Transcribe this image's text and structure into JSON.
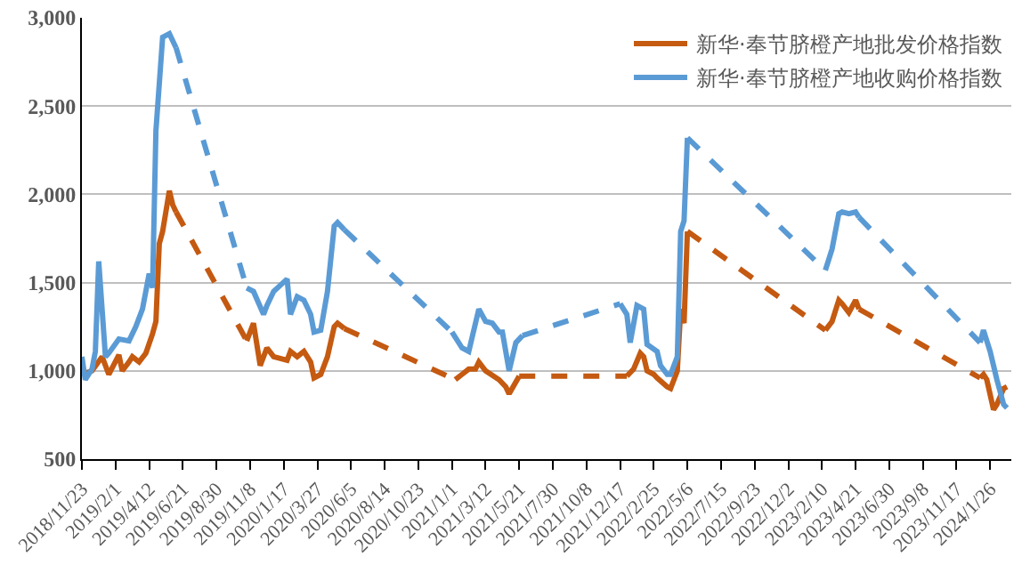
{
  "chart_data": {
    "type": "line",
    "legend": "top right",
    "grid": "y",
    "line_style": "solid",
    "marker": "none",
    "xlim": [
      "2018-11-23",
      "2024-03-10"
    ],
    "xticks": [
      {
        "value": "2018-11-23",
        "label": "2018/11/23"
      },
      {
        "value": "2019-02-01",
        "label": "2019/2/1"
      },
      {
        "value": "2019-04-12",
        "label": "2019/4/12"
      },
      {
        "value": "2019-06-21",
        "label": "2019/6/21"
      },
      {
        "value": "2019-08-30",
        "label": "2019/8/30"
      },
      {
        "value": "2019-11-08",
        "label": "2019/11/8"
      },
      {
        "value": "2020-01-17",
        "label": "2020/1/17"
      },
      {
        "value": "2020-03-27",
        "label": "2020/3/27"
      },
      {
        "value": "2020-06-05",
        "label": "2020/6/5"
      },
      {
        "value": "2020-08-14",
        "label": "2020/8/14"
      },
      {
        "value": "2020-10-23",
        "label": "2020/10/23"
      },
      {
        "value": "2021-01-01",
        "label": "2021/1/1"
      },
      {
        "value": "2021-03-12",
        "label": "2021/3/12"
      },
      {
        "value": "2021-05-21",
        "label": "2021/5/21"
      },
      {
        "value": "2021-07-30",
        "label": "2021/7/30"
      },
      {
        "value": "2021-10-08",
        "label": "2021/10/8"
      },
      {
        "value": "2021-12-17",
        "label": "2021/12/17"
      },
      {
        "value": "2022-02-25",
        "label": "2022/2/25"
      },
      {
        "value": "2022-05-06",
        "label": "2022/5/6"
      },
      {
        "value": "2022-07-15",
        "label": "2022/7/15"
      },
      {
        "value": "2022-09-23",
        "label": "2022/9/23"
      },
      {
        "value": "2022-12-02",
        "label": "2022/12/2"
      },
      {
        "value": "2023-02-10",
        "label": "2023/2/10"
      },
      {
        "value": "2023-04-21",
        "label": "2023/4/21"
      },
      {
        "value": "2023-06-30",
        "label": "2023/6/30"
      },
      {
        "value": "2023-09-08",
        "label": "2023/9/8"
      },
      {
        "value": "2023-11-17",
        "label": "2023/11/17"
      },
      {
        "value": "2024-01-26",
        "label": "2024/1/26"
      }
    ],
    "ylim": [
      500,
      3000
    ],
    "yticks": [
      500,
      {
        "value": 1000,
        "label": "1,000"
      },
      {
        "value": 1500,
        "label": "1,500"
      },
      {
        "value": 2000,
        "label": "2,000"
      },
      {
        "value": 2500,
        "label": "2,500"
      },
      {
        "value": 3000,
        "label": "3,000"
      }
    ],
    "series": [
      {
        "name": "新华·奉节脐橙产地批发价格指数",
        "color": "#c55a11",
        "x": [
          "2018-11-23",
          "2018-12-14",
          "2019-01-04",
          "2019-01-18",
          "2019-02-08",
          "2019-02-15",
          "2019-03-01",
          "2019-03-08",
          "2019-03-22",
          "2019-04-05",
          "2019-04-19",
          "2019-04-26",
          "2019-05-03",
          "2019-05-10",
          "2019-05-24",
          "2019-05-31",
          "2019-06-07",
          "2019-06-14",
          "2019-11-01",
          "2019-11-15",
          "2019-11-29",
          "2019-12-13",
          "2019-12-27",
          "2020-01-24",
          "2020-01-31",
          "2020-02-14",
          "2020-02-28",
          "2020-03-13",
          "2020-03-20",
          "2020-04-03",
          "2020-04-17",
          "2020-05-01",
          "2020-05-08",
          "2020-05-22",
          "2020-05-29",
          "2021-01-08",
          "2021-01-22",
          "2021-02-05",
          "2021-02-19",
          "2021-02-26",
          "2021-03-12",
          "2021-04-09",
          "2021-04-23",
          "2021-04-30",
          "2021-05-21",
          "2021-05-28",
          "2021-12-31",
          "2022-01-14",
          "2022-01-28",
          "2022-02-04",
          "2022-02-11",
          "2022-02-25",
          "2022-03-04",
          "2022-03-25",
          "2022-04-01",
          "2022-04-15",
          "2022-04-22",
          "2022-04-29",
          "2022-05-06",
          "2022-05-13",
          "2023-02-17",
          "2023-03-03",
          "2023-03-17",
          "2023-03-24",
          "2023-04-07",
          "2023-04-21",
          "2023-04-28",
          "2023-05-05",
          "2024-01-05",
          "2024-01-12",
          "2024-01-19",
          "2024-02-02",
          "2024-02-09",
          "2024-02-23",
          "2024-03-01"
        ],
        "values": [
          980,
          1000,
          1080,
          980,
          1090,
          1000,
          1050,
          1080,
          1050,
          1100,
          1210,
          1280,
          1720,
          1790,
          2020,
          1940,
          1900,
          null,
          1170,
          1270,
          1030,
          1130,
          1080,
          1060,
          1110,
          1080,
          1110,
          1050,
          960,
          980,
          1080,
          1250,
          1270,
          1240,
          null,
          950,
          980,
          1010,
          1010,
          1050,
          1000,
          950,
          910,
          870,
          970,
          null,
          970,
          1010,
          1100,
          1080,
          1000,
          980,
          960,
          910,
          900,
          1000,
          1350,
          1270,
          1790,
          null,
          1230,
          1280,
          1400,
          1380,
          1330,
          1400,
          1350,
          null,
          960,
          980,
          950,
          780,
          810,
          900,
          910
        ]
      },
      {
        "name": "新华·奉节脐橙产地收购价格指数",
        "color": "#5b9bd5",
        "x": [
          "2018-11-23",
          "2018-11-30",
          "2018-12-14",
          "2018-12-21",
          "2018-12-28",
          "2019-01-11",
          "2019-01-18",
          "2019-02-08",
          "2019-03-01",
          "2019-03-15",
          "2019-03-29",
          "2019-04-12",
          "2019-04-19",
          "2019-04-26",
          "2019-05-10",
          "2019-05-24",
          "2019-06-07",
          "2019-06-14",
          "2019-11-01",
          "2019-11-15",
          "2019-12-06",
          "2019-12-13",
          "2019-12-27",
          "2020-01-24",
          "2020-01-31",
          "2020-02-14",
          "2020-02-28",
          "2020-03-13",
          "2020-03-20",
          "2020-04-03",
          "2020-04-17",
          "2020-05-01",
          "2020-05-08",
          "2020-05-22",
          "2020-05-29",
          "2021-01-01",
          "2021-01-22",
          "2021-02-05",
          "2021-02-26",
          "2021-03-12",
          "2021-03-26",
          "2021-04-09",
          "2021-04-16",
          "2021-04-30",
          "2021-05-14",
          "2021-05-28",
          "2021-06-04",
          "2021-12-17",
          "2021-12-31",
          "2022-01-07",
          "2022-01-21",
          "2022-02-04",
          "2022-02-11",
          "2022-03-04",
          "2022-03-11",
          "2022-03-25",
          "2022-04-01",
          "2022-04-15",
          "2022-04-22",
          "2022-04-29",
          "2022-05-06",
          "2022-05-13",
          "2023-02-17",
          "2023-03-03",
          "2023-03-17",
          "2023-03-24",
          "2023-04-07",
          "2023-04-21",
          "2023-04-28",
          "2023-05-05",
          "2024-01-05",
          "2024-01-12",
          "2024-01-26",
          "2024-02-09",
          "2024-02-23",
          "2024-03-01"
        ],
        "values": [
          1080,
          950,
          1010,
          1110,
          1620,
          1080,
          1100,
          1180,
          1170,
          1250,
          1350,
          1550,
          1470,
          2360,
          2890,
          2910,
          2830,
          null,
          1470,
          1450,
          1320,
          1370,
          1450,
          1520,
          1320,
          1420,
          1400,
          1320,
          1220,
          1230,
          1450,
          1820,
          1840,
          1800,
          null,
          1220,
          1130,
          1110,
          1350,
          1280,
          1270,
          1220,
          1220,
          1000,
          1160,
          1200,
          null,
          1380,
          1320,
          1160,
          1370,
          1350,
          1150,
          1110,
          1030,
          980,
          980,
          1080,
          1790,
          1850,
          2320,
          null,
          1570,
          1690,
          1890,
          1900,
          1890,
          1900,
          1870,
          null,
          1160,
          1230,
          1110,
          950,
          810,
          790
        ]
      },
      {
        "color": "#c45911",
        "line_style": "dashed",
        "x": [
          "2019-06-07",
          "2019-11-01",
          "2019-11-08",
          "2020-05-22",
          "2021-01-08",
          "2021-01-15",
          "2021-05-21",
          "2021-12-31",
          "2022-01-07",
          "2022-05-06",
          "2023-02-17",
          "2023-02-24",
          "2023-04-28",
          "2024-01-05"
        ],
        "values": [
          1900,
          1170,
          null,
          1240,
          950,
          null,
          970,
          970,
          null,
          1790,
          1230,
          null,
          1350,
          960
        ]
      },
      {
        "color": "#5a9ad4",
        "line_style": "dashed",
        "x": [
          "2019-06-07",
          "2019-11-01",
          "2019-11-08",
          "2020-05-22",
          "2021-01-01",
          "2021-01-08",
          "2021-05-28",
          "2021-12-17",
          "2021-12-24",
          "2022-05-06",
          "2023-02-17",
          "2023-02-24",
          "2023-04-28",
          "2024-01-05"
        ],
        "values": [
          2830,
          1470,
          null,
          1800,
          1220,
          null,
          1200,
          1380,
          null,
          2320,
          1570,
          null,
          1870,
          1160
        ]
      }
    ]
  }
}
